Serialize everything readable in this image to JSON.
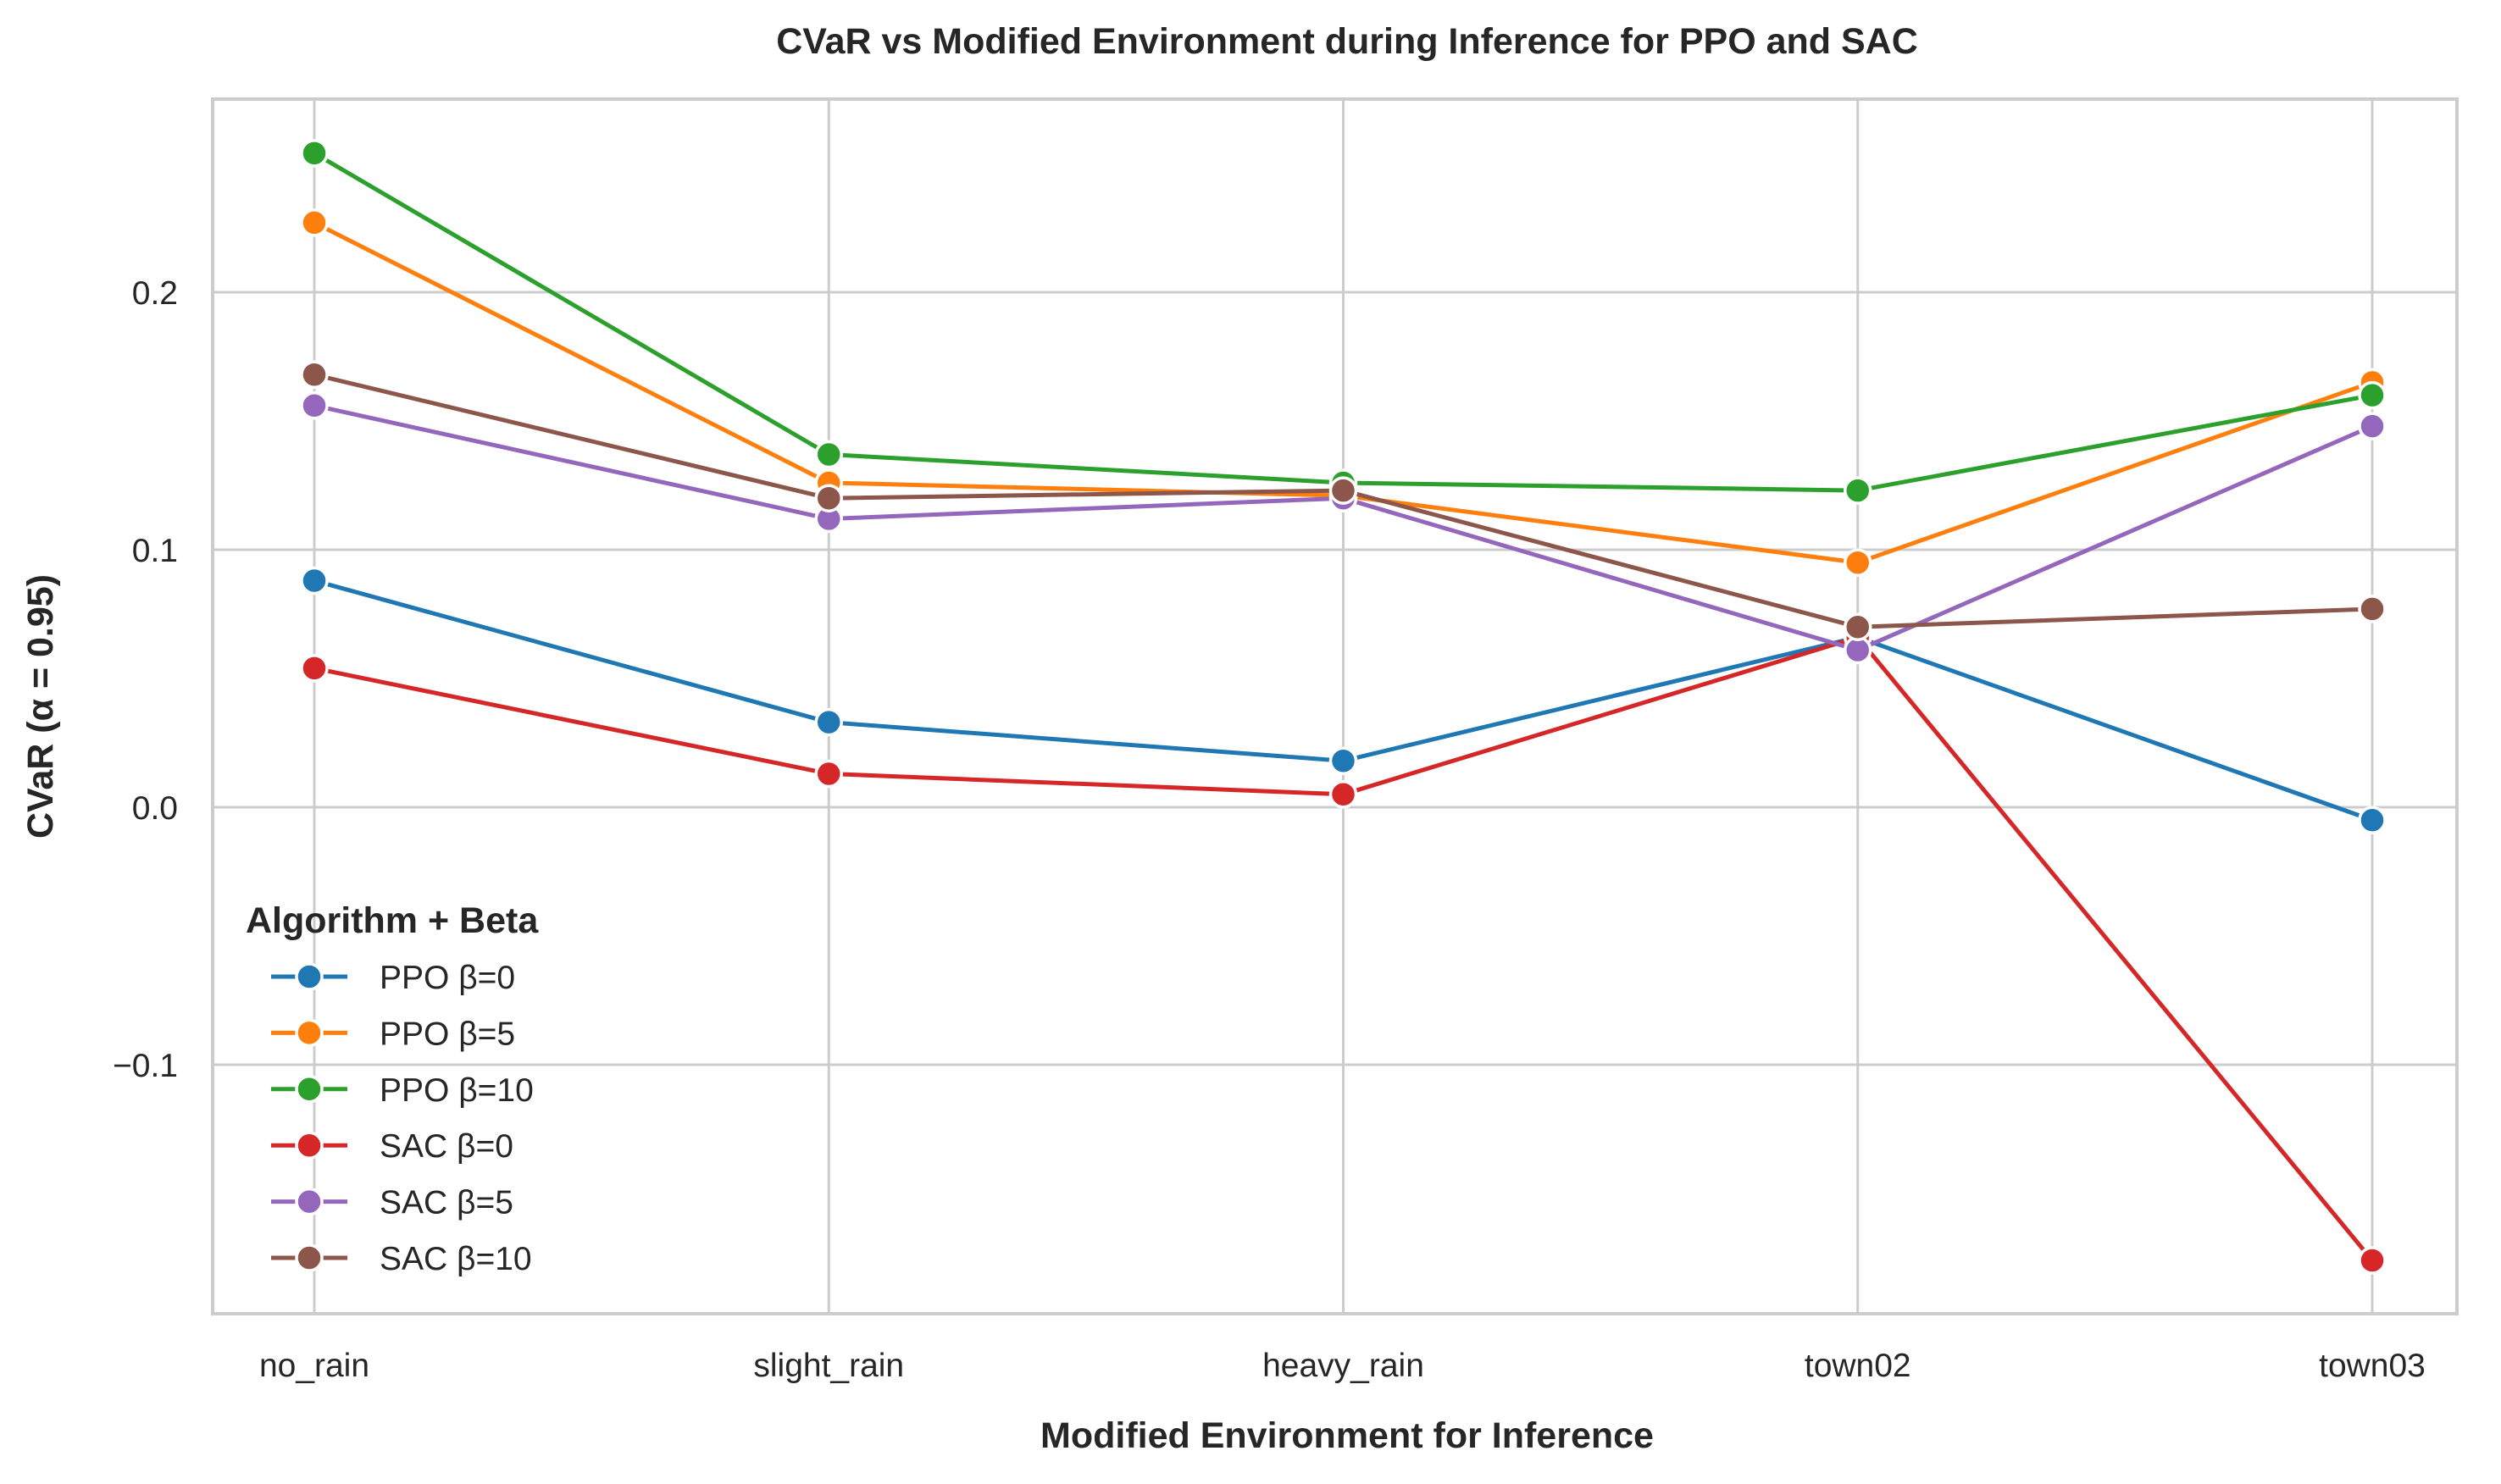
{
  "chart_data": {
    "type": "line",
    "title": "CVaR vs Modified Environment during Inference for PPO and SAC",
    "xlabel": "Modified Environment for Inference",
    "ylabel": "CVaR (α = 0.95)",
    "categories": [
      "no_rain",
      "slight_rain",
      "heavy_rain",
      "town02",
      "town03"
    ],
    "ylim": [
      -0.2,
      0.275
    ],
    "yticks": [
      {
        "value": 0.2,
        "label": "0.2"
      },
      {
        "value": 0.1,
        "label": "0.1"
      },
      {
        "value": 0.0,
        "label": "0.0"
      },
      {
        "value": -0.1,
        "label": "−0.1"
      }
    ],
    "grid": true,
    "legend": {
      "title": "Algorithm + Beta",
      "position": "lower-left"
    },
    "series": [
      {
        "name": "PPO β=0",
        "color": "#1f77b4",
        "values": [
          0.088,
          0.033,
          0.018,
          0.066,
          -0.005
        ]
      },
      {
        "name": "PPO β=5",
        "color": "#ff7f0e",
        "values": [
          0.227,
          0.126,
          0.121,
          0.095,
          0.165
        ]
      },
      {
        "name": "PPO β=10",
        "color": "#2ca02c",
        "values": [
          0.254,
          0.137,
          0.126,
          0.123,
          0.16
        ]
      },
      {
        "name": "SAC β=0",
        "color": "#d62728",
        "values": [
          0.054,
          0.013,
          0.005,
          0.066,
          -0.176
        ]
      },
      {
        "name": "SAC β=5",
        "color": "#9467bd",
        "values": [
          0.156,
          0.112,
          0.12,
          0.061,
          0.148
        ]
      },
      {
        "name": "SAC β=10",
        "color": "#8c564b",
        "values": [
          0.168,
          0.12,
          0.123,
          0.07,
          0.077
        ]
      }
    ]
  }
}
